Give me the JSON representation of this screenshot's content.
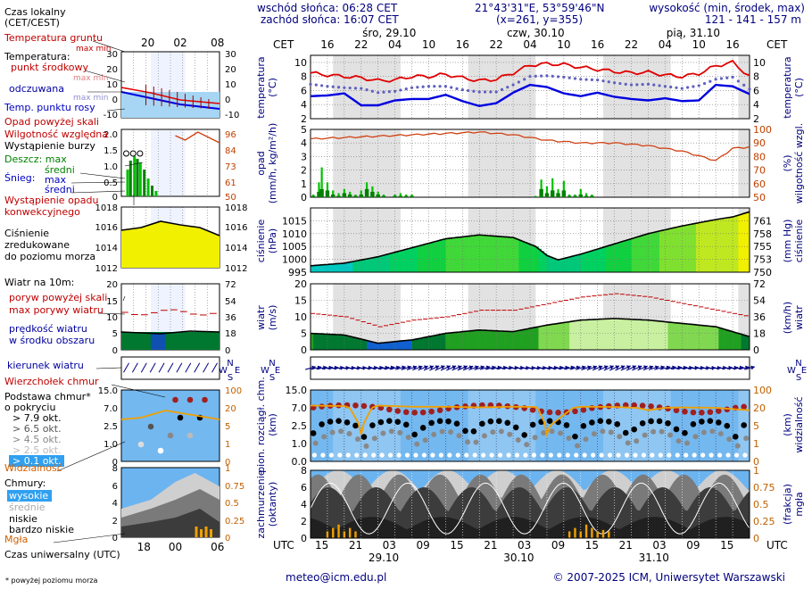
{
  "header": {
    "sunrise": "wschód słońca: 06:28 CET",
    "sunset": "zachód słońca: 16:07 CET",
    "coords": "21°43'31\"E, 53°59'46\"N",
    "grid": "(x=261,  y=355)",
    "elev_label": "wysokość (min, środek, max)",
    "elev_values": "121 - 141 - 157 m",
    "footer_email": "meteo@icm.edu.pl",
    "footer_copy": "© 2007-2025 ICM, Uniwersytet Warszawski",
    "footnote": "* powyżej poziomu morza"
  },
  "legend": {
    "local_time": "Czas lokalny",
    "local_time2": "(CET/CEST)",
    "utc_time": "Czas uniwersalny (UTC)",
    "top_hours": [
      "20",
      "02",
      "08"
    ],
    "bottom_hours": [
      "18",
      "00",
      "06"
    ],
    "temp_ground": "Temperatura gruntu",
    "temp_ground2": "max min",
    "temperature": "Temperatura:",
    "temp_mid": "punkt środkowy",
    "temp_mm": "max min",
    "felt": "odczuwana",
    "felt_mm": "max min",
    "dew": "Temp. punktu rosy",
    "precip_above": "Opad powyżej skali",
    "humidity": "Wilgotność względna",
    "storm": "Wystąpienie burzy",
    "rain": "Deszcz: max",
    "rain_mid": "średni",
    "snow": "Śnieg:",
    "snow_max": "max",
    "snow_mid": "średni",
    "conv": "Wystąpienie opadu",
    "conv2": "konwekcyjnego",
    "pressure": "Ciśnienie",
    "pressure2": "zredukowane",
    "pressure3": "do poziomu morza",
    "wind_at": "Wiatr na 10m:",
    "gust_above": "poryw powyżej skali",
    "gust_max": "max porywy wiatru",
    "wind_speed": "prędkość wiatru",
    "wind_area": "w środku obszaru",
    "wind_dir": "kierunek wiatru",
    "cloud_top": "Wierzchołek chmur",
    "cloud_base": "Podstawa chmur*",
    "cloud_base2": "o pokryciu",
    "okt": [
      "> 7.9 okt.",
      "> 6.5 okt.",
      "> 4.5 okt.",
      "> 2.5 okt.",
      "> 0.1 okt."
    ],
    "visibility": "Widzialność",
    "clouds": "Chmury:",
    "cl_high": "wysokie",
    "cl_mid": "średnie",
    "cl_low": "niskie",
    "cl_vlow": "bardzo niskie",
    "fog": "Mgła"
  },
  "axes": {
    "cet": "CET",
    "utc": "UTC",
    "top_days": [
      "śro, 29.10",
      "czw, 30.10",
      "pią, 31.10"
    ],
    "bottom_days": [
      "29.10",
      "30.10",
      "31.10"
    ],
    "top_ticks": [
      "16",
      "22",
      "04",
      "10",
      "16",
      "22",
      "04",
      "10",
      "16",
      "22",
      "04",
      "10",
      "16"
    ],
    "bottom_ticks": [
      "15",
      "21",
      "03",
      "09",
      "15",
      "21",
      "03",
      "09",
      "15",
      "21",
      "03",
      "09",
      "15"
    ],
    "temp_l": "temperatura",
    "temp_l2": "(°C)",
    "temp_r": "temperatura",
    "temp_r2": "(°C)",
    "prec_l": "opad",
    "prec_l2": "(mm/h, kg/m²/h)",
    "prec_r": "wilgotność wzgl.",
    "prec_r2": "(%)",
    "pres_l": "ciśnienie",
    "pres_l2": "(hPa)",
    "pres_r": "ciśnienie",
    "pres_r2": "(mm Hg)",
    "wind_l": "wiatr",
    "wind_l2": "(m/s)",
    "wind_r": "wiatr",
    "wind_r2": "(km/h)",
    "cb_l": "pion. rozciągł. chm.",
    "cb_l2": "(km)",
    "cb_r": "widzialność",
    "cb_r2": "(km)",
    "cc_l": "zachmurzenie",
    "cc_l2": "(oktanty)",
    "cc_r": "mgła",
    "cc_r2": "(frakcja)",
    "compass": [
      "N",
      "W",
      "E",
      "S"
    ]
  },
  "chart_data": [
    {
      "type": "line",
      "title": "temperatura (°C)",
      "ylim": [
        2,
        11
      ],
      "yticks_left": [
        2,
        4,
        6,
        8,
        10
      ],
      "yticks_right": [
        2,
        4,
        6,
        8,
        10
      ],
      "hours_from_start": [
        0,
        3,
        6,
        9,
        12,
        15,
        18,
        21,
        24,
        27,
        30,
        33,
        36,
        39,
        42,
        45,
        48,
        51,
        54,
        57,
        60,
        63,
        66,
        69,
        72,
        75,
        78
      ],
      "series": [
        {
          "name": "temperatura",
          "color": "#e00000",
          "values": [
            8.5,
            8.2,
            8.0,
            7.8,
            7.4,
            7.5,
            8.0,
            8.0,
            8.3,
            7.8,
            7.4,
            7.6,
            8.5,
            9.6,
            9.8,
            9.7,
            9.3,
            9.0,
            8.7,
            8.5,
            8.6,
            8.2,
            8.0,
            8.4,
            9.5,
            10.0,
            8.0
          ]
        },
        {
          "name": "odczuwana",
          "color": "#6060c0",
          "values": [
            6.9,
            6.6,
            6.4,
            6.3,
            5.7,
            5.9,
            6.4,
            6.6,
            6.6,
            6.1,
            5.8,
            5.8,
            6.8,
            8.0,
            8.1,
            7.9,
            7.6,
            7.5,
            7.1,
            6.8,
            6.9,
            6.6,
            6.3,
            6.7,
            7.6,
            7.9,
            6.2
          ]
        },
        {
          "name": "punkt rosy",
          "color": "#0000e0",
          "values": [
            5.2,
            5.3,
            5.6,
            3.9,
            3.9,
            4.6,
            4.8,
            4.8,
            5.4,
            4.5,
            3.8,
            4.2,
            5.7,
            6.8,
            6.5,
            5.6,
            5.2,
            5.7,
            5.1,
            4.8,
            4.6,
            4.9,
            4.5,
            4.6,
            6.8,
            6.6,
            5.5
          ]
        }
      ]
    },
    {
      "type": "bar",
      "title": "opad (mm/h) / wilgotność wzgl. (%)",
      "ylim": [
        0,
        5
      ],
      "yticks_left": [
        0,
        1,
        2,
        3,
        4,
        5
      ],
      "yticks_right": [
        50,
        60,
        70,
        80,
        90,
        100
      ],
      "precip_hours": [
        0.5,
        1.5,
        2,
        3,
        4,
        5,
        6,
        7,
        8,
        9,
        10,
        11,
        12,
        13,
        15,
        16,
        17,
        18,
        40,
        41,
        42,
        43,
        44,
        45,
        46,
        47,
        48,
        49,
        50
      ],
      "precip_max": [
        0.2,
        1.1,
        2.2,
        1.1,
        0.5,
        0.3,
        0.6,
        0.4,
        0.2,
        0.5,
        1.1,
        0.8,
        0.4,
        0.2,
        0.2,
        0.3,
        0.2,
        0.2,
        0.1,
        1.3,
        0.8,
        1.4,
        0.6,
        1.2,
        0.2,
        0.2,
        0.6,
        0.3,
        0.2
      ],
      "precip_mid": [
        0.1,
        0.4,
        0.6,
        0.5,
        0.2,
        0.1,
        0.3,
        0.2,
        0.1,
        0.2,
        0.6,
        0.4,
        0.2,
        0.1,
        0.1,
        0.1,
        0.1,
        0.1,
        0.05,
        0.6,
        0.3,
        0.5,
        0.3,
        0.5,
        0.1,
        0.1,
        0.2,
        0.1,
        0.1
      ],
      "humidity_hours": [
        0,
        6,
        12,
        18,
        24,
        30,
        36,
        42,
        48,
        54,
        60,
        66,
        72,
        75,
        78
      ],
      "humidity": [
        93,
        94,
        95,
        96,
        97,
        98,
        96,
        92,
        90,
        90,
        88,
        84,
        77,
        86,
        87
      ]
    },
    {
      "type": "area",
      "title": "ciśnienie (hPa)",
      "ylim": [
        995,
        1020
      ],
      "yticks_left": [
        995,
        1000,
        1005,
        1010,
        1015
      ],
      "yticks_right": [
        750,
        753,
        755,
        758,
        761
      ],
      "hours_from_start": [
        0,
        6,
        12,
        18,
        24,
        30,
        36,
        40,
        42,
        44,
        48,
        54,
        60,
        66,
        72,
        75,
        78
      ],
      "values": [
        997.5,
        998.5,
        1001,
        1004.5,
        1008,
        1009.5,
        1008.5,
        1005,
        1001.5,
        999.8,
        1002,
        1006,
        1010,
        1013,
        1015.5,
        1016.5,
        1018.5
      ]
    },
    {
      "type": "line",
      "title": "wiatr (m/s)",
      "ylim": [
        0,
        20
      ],
      "yticks_left": [
        0,
        5,
        10,
        15,
        20
      ],
      "yticks_right": [
        0,
        18,
        36,
        54,
        72
      ],
      "hours_from_start": [
        0,
        6,
        12,
        18,
        24,
        30,
        36,
        42,
        48,
        54,
        60,
        66,
        72,
        78
      ],
      "series": [
        {
          "name": "max porywy",
          "color": "#c00000",
          "values": [
            11,
            10,
            7,
            9,
            10,
            12,
            12,
            14,
            16,
            17,
            16,
            14,
            12,
            10
          ]
        },
        {
          "name": "prędkość",
          "color": "#000000",
          "values": [
            5,
            4.5,
            2,
            3,
            5,
            6,
            5.5,
            7.5,
            9,
            9.5,
            9,
            8,
            7,
            4
          ]
        }
      ]
    },
    {
      "type": "scatter",
      "title": "wierzchołek / podstawa chmur (km), widzialność (km)",
      "ylim": [
        0,
        15
      ],
      "yticks_left": [
        0,
        1.0,
        2.5,
        7.0,
        15.0
      ],
      "yticks_right": [
        0,
        1,
        5,
        20,
        100
      ],
      "visibility_hours": [
        0,
        6,
        9,
        12,
        18,
        24,
        30,
        36,
        40,
        42,
        48,
        54,
        60,
        66,
        72,
        78
      ],
      "visibility_km": [
        30,
        28,
        3,
        30,
        25,
        25,
        22,
        25,
        24,
        3,
        25,
        24,
        18,
        22,
        20,
        18
      ]
    },
    {
      "type": "area",
      "title": "zachmurzenie (oktanty) / mgła (frakcja)",
      "ylim": [
        0,
        8
      ],
      "yticks_left": [
        0,
        2,
        4,
        6,
        8
      ],
      "yticks_right": [
        0,
        0.25,
        0.5,
        0.75,
        1
      ],
      "fog_hours": [
        3,
        4,
        5,
        6,
        7,
        8,
        46,
        47,
        48,
        49,
        50,
        51,
        52,
        53
      ],
      "fog": [
        0.1,
        0.15,
        0.2,
        0.1,
        0.15,
        0.1,
        0.1,
        0.15,
        0.1,
        0.2,
        0.15,
        0.1,
        0.12,
        0.1
      ]
    }
  ]
}
